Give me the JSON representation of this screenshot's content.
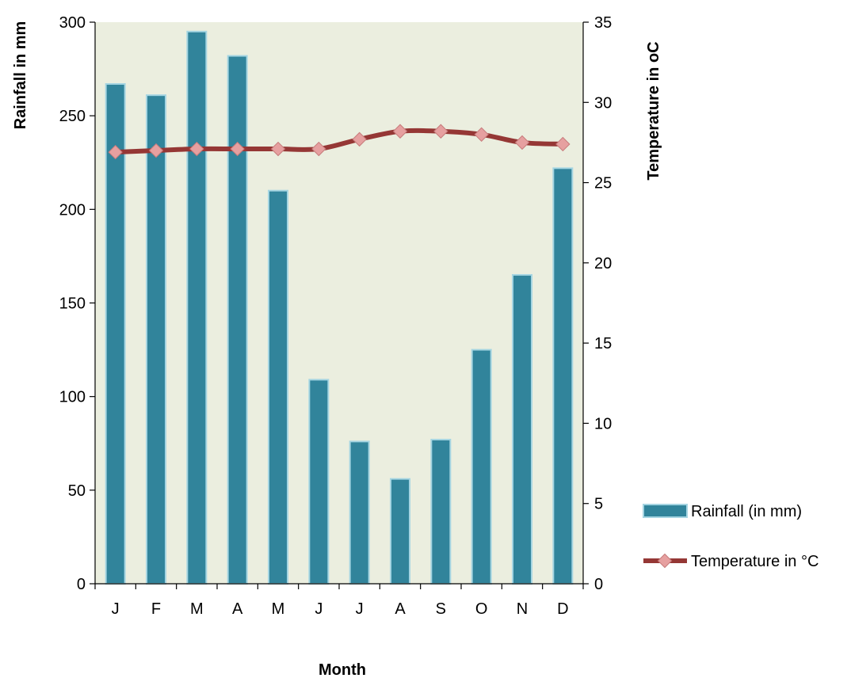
{
  "chart_data": {
    "type": "bar+line",
    "categories": [
      "J",
      "F",
      "M",
      "A",
      "M",
      "J",
      "J",
      "A",
      "S",
      "O",
      "N",
      "D"
    ],
    "series": [
      {
        "name": "Rainfall (in mm)",
        "type": "bar",
        "axis": "left",
        "color": "#31849b",
        "values": [
          267,
          261,
          295,
          282,
          210,
          109,
          76,
          56,
          77,
          125,
          165,
          222
        ]
      },
      {
        "name": "Temperature in °C",
        "type": "line",
        "axis": "right",
        "color": "#953735",
        "marker_color": "#e6a0a0",
        "values": [
          26.9,
          27.0,
          27.1,
          27.1,
          27.1,
          27.1,
          27.7,
          28.2,
          28.2,
          28.0,
          27.5,
          27.4
        ]
      }
    ],
    "xlabel": "Month",
    "ylabel_left": "Rainfall in mm",
    "ylabel_right": "Temperature in oC",
    "ylim_left": [
      0,
      300
    ],
    "ylim_right": [
      0,
      35
    ],
    "yticks_left": [
      0,
      50,
      100,
      150,
      200,
      250,
      300
    ],
    "yticks_right": [
      0,
      5,
      10,
      15,
      20,
      25,
      30,
      35
    ],
    "plot_background": "#ebeedf",
    "legend_position": "right"
  }
}
